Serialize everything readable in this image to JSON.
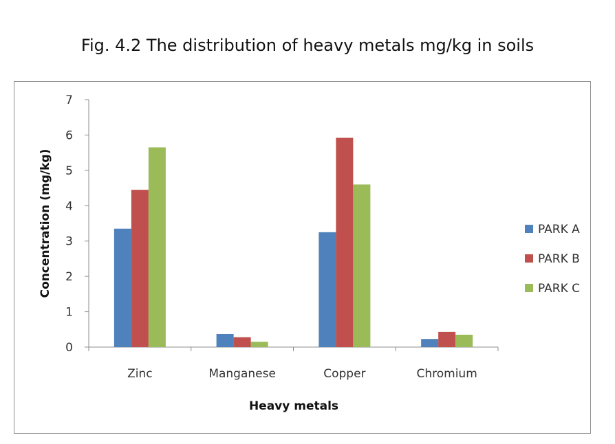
{
  "chart_data": {
    "type": "bar",
    "title": "Fig. 4.2 The distribution of heavy metals mg/kg in soils",
    "xlabel": "Heavy metals",
    "ylabel": "Concentration (mg/kg)",
    "categories": [
      "Zinc",
      "Manganese",
      "Copper",
      "Chromium"
    ],
    "series": [
      {
        "name": "PARK A",
        "color": "#4f81bd",
        "values": [
          3.35,
          0.37,
          3.25,
          0.23
        ]
      },
      {
        "name": "PARK B",
        "color": "#c0504d",
        "values": [
          4.45,
          0.28,
          5.92,
          0.43
        ]
      },
      {
        "name": "PARK C",
        "color": "#9bbb59",
        "values": [
          5.65,
          0.15,
          4.6,
          0.35
        ]
      }
    ],
    "ylim": [
      0,
      7
    ],
    "yticks": [
      0,
      1,
      2,
      3,
      4,
      5,
      6,
      7
    ],
    "legend_position": "right",
    "grid": false
  }
}
